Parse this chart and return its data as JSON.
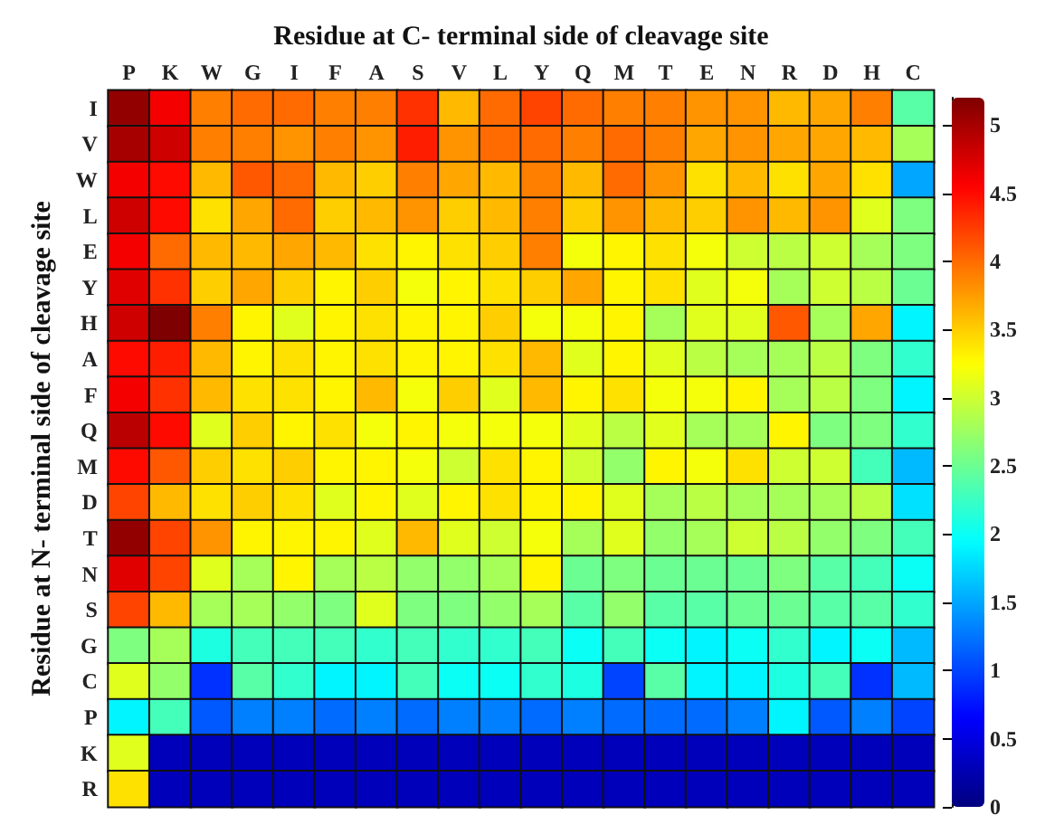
{
  "chart_data": {
    "type": "heatmap",
    "xlabel": "Residue at C- terminal side of cleavage site",
    "ylabel": "Residue at N- terminal side of cleavage site",
    "categories": [
      "P",
      "K",
      "W",
      "G",
      "I",
      "F",
      "A",
      "S",
      "V",
      "L",
      "Y",
      "Q",
      "M",
      "T",
      "E",
      "N",
      "R",
      "D",
      "H",
      "C"
    ],
    "y_categories": [
      "I",
      "V",
      "W",
      "L",
      "E",
      "Y",
      "H",
      "A",
      "F",
      "Q",
      "M",
      "D",
      "T",
      "N",
      "S",
      "G",
      "C",
      "P",
      "K",
      "R"
    ],
    "cells": [
      [
        5.1,
        4.6,
        3.9,
        4.0,
        4.0,
        3.9,
        3.9,
        4.3,
        3.6,
        4.0,
        4.2,
        4.0,
        3.9,
        3.9,
        3.8,
        3.8,
        3.6,
        3.7,
        3.9,
        2.4
      ],
      [
        5.0,
        4.8,
        3.9,
        3.9,
        3.8,
        3.9,
        3.8,
        4.4,
        3.8,
        4.0,
        4.0,
        3.9,
        4.0,
        3.9,
        3.7,
        3.8,
        3.7,
        3.7,
        3.6,
        2.8
      ],
      [
        4.6,
        4.5,
        3.6,
        4.1,
        4.0,
        3.6,
        3.5,
        3.9,
        3.7,
        3.6,
        3.9,
        3.6,
        4.0,
        3.8,
        3.4,
        3.6,
        3.4,
        3.7,
        3.4,
        1.5
      ],
      [
        4.8,
        4.5,
        3.4,
        3.7,
        4.0,
        3.5,
        3.6,
        3.8,
        3.5,
        3.6,
        3.9,
        3.5,
        3.8,
        3.6,
        3.5,
        3.8,
        3.6,
        3.8,
        3.1,
        2.6
      ],
      [
        4.6,
        4.0,
        3.6,
        3.6,
        3.7,
        3.6,
        3.4,
        3.3,
        3.4,
        3.5,
        3.9,
        3.2,
        3.3,
        3.4,
        3.2,
        3.0,
        2.9,
        3.0,
        2.8,
        2.6
      ],
      [
        4.7,
        4.3,
        3.5,
        3.7,
        3.5,
        3.3,
        3.5,
        3.2,
        3.3,
        3.4,
        3.5,
        3.7,
        3.3,
        3.4,
        3.1,
        3.2,
        2.8,
        3.0,
        2.9,
        2.5
      ],
      [
        4.8,
        5.2,
        3.9,
        3.3,
        3.1,
        3.3,
        3.4,
        3.3,
        3.3,
        3.5,
        3.2,
        3.2,
        3.3,
        2.8,
        3.1,
        3.1,
        4.1,
        2.8,
        3.7,
        1.9
      ],
      [
        4.5,
        4.4,
        3.6,
        3.3,
        3.4,
        3.3,
        3.4,
        3.3,
        3.3,
        3.4,
        3.6,
        3.1,
        3.3,
        3.1,
        2.9,
        2.8,
        2.8,
        2.9,
        2.6,
        2.2
      ],
      [
        4.6,
        4.3,
        3.6,
        3.4,
        3.4,
        3.3,
        3.6,
        3.2,
        3.5,
        3.1,
        3.6,
        3.3,
        3.4,
        3.2,
        3.2,
        3.3,
        2.8,
        2.9,
        2.6,
        1.9
      ],
      [
        4.9,
        4.5,
        3.1,
        3.5,
        3.3,
        3.4,
        3.2,
        3.3,
        3.2,
        3.2,
        3.2,
        3.1,
        2.9,
        3.1,
        2.8,
        2.8,
        3.3,
        2.6,
        2.6,
        2.2
      ],
      [
        4.5,
        4.1,
        3.5,
        3.4,
        3.5,
        3.3,
        3.3,
        3.2,
        3.0,
        3.4,
        3.3,
        3.0,
        2.7,
        3.3,
        3.2,
        3.4,
        3.0,
        3.0,
        2.3,
        1.6
      ],
      [
        4.2,
        3.6,
        3.4,
        3.5,
        3.4,
        3.1,
        3.3,
        3.1,
        3.3,
        3.4,
        3.3,
        3.3,
        3.1,
        2.8,
        2.9,
        2.8,
        2.8,
        2.8,
        2.9,
        1.8
      ],
      [
        5.1,
        4.2,
        3.8,
        3.3,
        3.3,
        3.3,
        3.1,
        3.6,
        3.1,
        3.0,
        3.2,
        2.8,
        3.1,
        2.7,
        2.8,
        3.0,
        2.9,
        2.7,
        2.6,
        2.3
      ],
      [
        4.7,
        4.2,
        3.1,
        2.8,
        3.3,
        2.8,
        2.9,
        2.7,
        2.7,
        2.8,
        3.3,
        2.5,
        2.6,
        2.5,
        2.5,
        2.5,
        2.6,
        2.4,
        2.3,
        2.0
      ],
      [
        4.2,
        3.6,
        2.8,
        2.8,
        2.7,
        2.6,
        3.1,
        2.6,
        2.6,
        2.7,
        2.8,
        2.4,
        2.7,
        2.4,
        2.4,
        2.5,
        2.5,
        2.4,
        2.4,
        2.2
      ],
      [
        2.6,
        2.8,
        2.1,
        2.3,
        2.3,
        2.3,
        2.2,
        2.3,
        2.2,
        2.2,
        2.3,
        2.0,
        2.3,
        2.0,
        1.9,
        2.0,
        2.2,
        1.9,
        2.0,
        1.6
      ],
      [
        3.1,
        2.7,
        0.9,
        2.4,
        2.2,
        1.9,
        1.9,
        2.3,
        2.0,
        2.0,
        2.2,
        2.1,
        1.0,
        2.4,
        1.9,
        1.9,
        2.1,
        2.3,
        0.9,
        1.6
      ],
      [
        1.9,
        2.3,
        1.1,
        1.3,
        1.3,
        1.2,
        1.3,
        1.2,
        1.3,
        1.3,
        1.2,
        1.3,
        1.2,
        1.2,
        1.2,
        1.3,
        1.9,
        1.1,
        1.3,
        1.0
      ],
      [
        3.1,
        0.3,
        0.3,
        0.3,
        0.3,
        0.3,
        0.3,
        0.3,
        0.3,
        0.3,
        0.3,
        0.3,
        0.3,
        0.3,
        0.3,
        0.3,
        0.3,
        0.3,
        0.3,
        0.3
      ],
      [
        3.4,
        0.3,
        0.3,
        0.3,
        0.3,
        0.3,
        0.3,
        0.3,
        0.3,
        0.3,
        0.3,
        0.3,
        0.3,
        0.3,
        0.3,
        0.3,
        0.3,
        0.3,
        0.3,
        0.3
      ]
    ],
    "clim": [
      0,
      5.2
    ],
    "cticks": [
      0,
      0.5,
      1,
      1.5,
      2,
      2.5,
      3,
      3.5,
      4,
      4.5,
      5
    ]
  }
}
